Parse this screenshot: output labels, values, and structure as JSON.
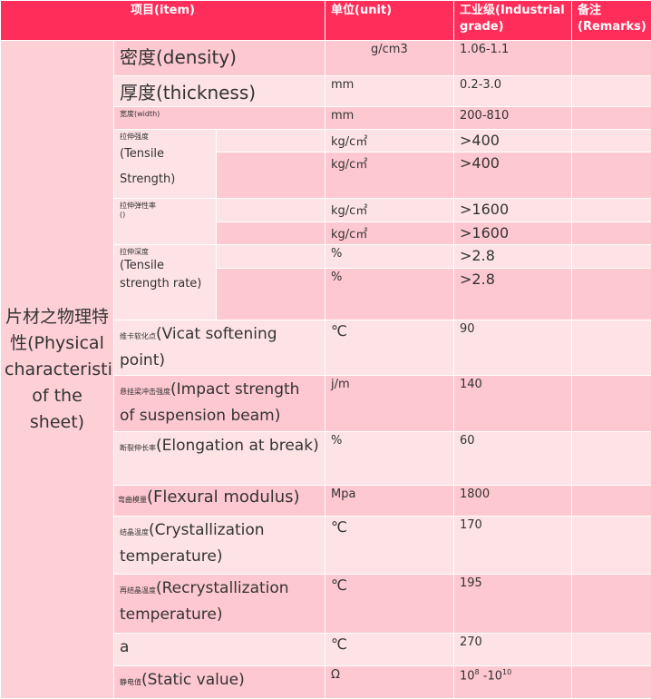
{
  "header": {
    "item": "项目(item)",
    "unit": "单位(unit)",
    "grade": "工业级(Industrial grade)",
    "remarks": "备注(Remarks)"
  },
  "side_label": "片材之物理特性(Physical characteristics of the sheet)",
  "rows": {
    "density": {
      "cn": "密度",
      "en": "(density)",
      "unit": "g/cm3",
      "value": "1.06-1.1"
    },
    "thickness": {
      "cn": "厚度",
      "en": "(thickness)",
      "unit": "mm",
      "value": "0.2-3.0"
    },
    "width": {
      "cn": "宽度",
      "en": "(width)",
      "unit": "mm",
      "value": "200-810"
    },
    "tensile": {
      "cn": "拉伸强度",
      "en": "(Tensile Strength)",
      "unit": "kg/c㎡",
      "value": ">400",
      "unit2": "kg/c㎡",
      "value2": ">400"
    },
    "modulus": {
      "cn": "拉伸弹性率",
      "en": "()",
      "unit": "kg/c㎡",
      "value": ">1600",
      "unit2": "kg/c㎡",
      "value2": ">1600"
    },
    "rate": {
      "cn": "拉伸深度",
      "en": "(Tensile strength rate)",
      "unit": "%",
      "value": ">2.8",
      "unit2": "%",
      "value2": ">2.8"
    },
    "vicat": {
      "cn": "维卡软化点",
      "en": "(Vicat softening point)",
      "unit": "℃",
      "value": "90"
    },
    "impact": {
      "cn": "悬挂梁冲击强度",
      "en": "(Impact strength of suspension beam)",
      "unit": "j/m",
      "value": "140"
    },
    "elongation": {
      "cn": "断裂伸长率",
      "en": "(Elongation at break)",
      "unit": "%",
      "value": "60"
    },
    "flexural": {
      "cn": "弯曲模量",
      "en": "(Flexural modulus)",
      "unit": "Mpa",
      "value": "1800"
    },
    "crystal": {
      "cn": "结晶温度",
      "en": "(Crystallization temperature)",
      "unit": "℃",
      "value": "170"
    },
    "recrystal": {
      "cn": "再结晶温度",
      "en": "(Recrystallization temperature)",
      "unit": "℃",
      "value": "195"
    },
    "a": {
      "en": "a",
      "unit": "℃",
      "value": "270"
    },
    "static": {
      "cn": "静电值",
      "en": "(Static value)",
      "unit": "Ω",
      "value_base1": "10",
      "value_exp1": "8",
      "value_sep": " -",
      "value_base2": "10",
      "value_exp2": "10"
    }
  },
  "colors": {
    "header": "#ff2d5a",
    "row_light": "#fde3e6",
    "row_dark": "#fdc8cf"
  }
}
